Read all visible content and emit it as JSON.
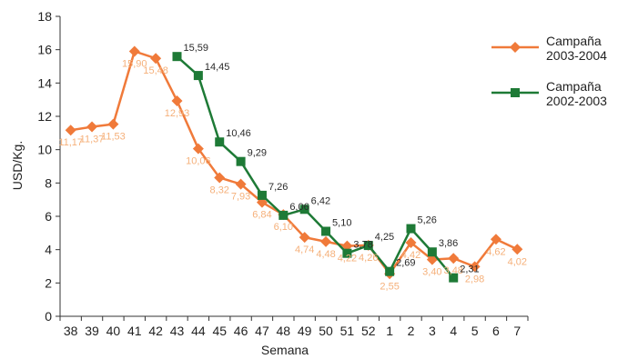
{
  "chart_data": {
    "type": "line",
    "title": "",
    "xlabel": "Semana",
    "ylabel": "USD/Kg.",
    "ylim": [
      0,
      18
    ],
    "yticks": [
      "0",
      "2",
      "4",
      "6",
      "8",
      "10",
      "12",
      "14",
      "16",
      "18"
    ],
    "categories": [
      "38",
      "39",
      "40",
      "41",
      "42",
      "43",
      "44",
      "45",
      "46",
      "47",
      "48",
      "49",
      "50",
      "51",
      "52",
      "1",
      "2",
      "3",
      "4",
      "5",
      "6",
      "7"
    ],
    "legend_position": "right",
    "grid": false,
    "series": [
      {
        "name": "Campaña\n2003-2004",
        "color": "#f07a3a",
        "marker": "diamond",
        "values": [
          11.17,
          11.37,
          11.53,
          15.9,
          15.48,
          12.93,
          10.06,
          8.32,
          7.93,
          6.84,
          6.1,
          4.74,
          4.48,
          4.22,
          4.26,
          2.55,
          4.42,
          3.4,
          3.48,
          2.98,
          4.62,
          4.02
        ],
        "labels": [
          "11,17",
          "11,37",
          "11,53",
          "15,90",
          "15,48",
          "12,93",
          "10,06",
          "8,32",
          "7,93",
          "6,84",
          "6,10",
          "4,74",
          "4,48",
          "4,22",
          "4,26",
          "2,55",
          "4,42",
          "3,40",
          "3,48",
          "2,98",
          "4,62",
          "4,02"
        ]
      },
      {
        "name": "Campaña\n2002-2003",
        "color": "#1e7a36",
        "marker": "square",
        "values": [
          null,
          null,
          null,
          null,
          null,
          15.59,
          14.45,
          10.46,
          9.29,
          7.26,
          6.06,
          6.42,
          5.1,
          3.78,
          4.25,
          2.69,
          5.26,
          3.86,
          2.31,
          null,
          null,
          null
        ],
        "labels": [
          null,
          null,
          null,
          null,
          null,
          "15,59",
          "14,45",
          "10,46",
          "9,29",
          "7,26",
          "6,06",
          "6,42",
          "5,10",
          "3,78",
          "4,25",
          "2,69",
          "5,26",
          "3,86",
          "2,31",
          null,
          null,
          null
        ]
      }
    ]
  }
}
